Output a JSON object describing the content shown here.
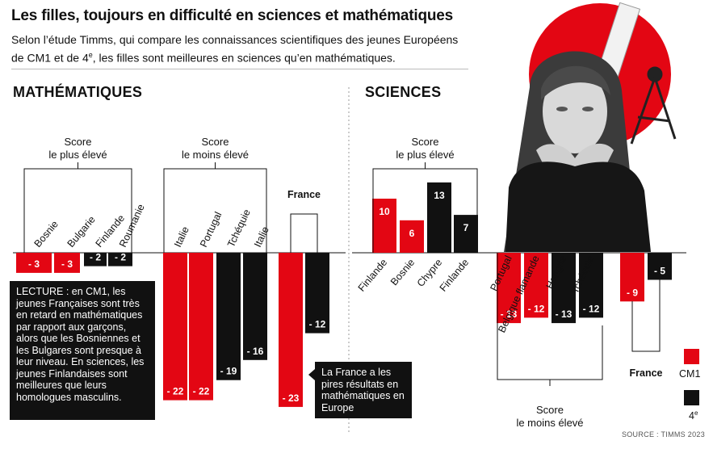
{
  "title": "Les filles, toujours en difficulté en sciences et mathématiques",
  "subtitle_part1": "Selon l’étude Timms, qui compare les connaissances scientifiques des jeunes Européens de CM1 et de 4",
  "subtitle_sup": "e",
  "subtitle_part2": ", les filles sont meilleures en sciences qu’en mathématiques.",
  "colors": {
    "cm1": "#e30613",
    "quatrieme": "#111111"
  },
  "legend": {
    "cm1_label": "CM1",
    "quatrieme_label": "4",
    "quatrieme_sup": "e"
  },
  "reading_note": "LECTURE : en CM1, les jeunes Françaises sont très en retard en mathématiques par rapport aux garçons, alors que les Bosniennes et les Bulgares sont presque à leur niveau. En sciences, les jeunes Finlandaises sont meilleures que leurs homologues masculins.",
  "france_note": "La France a les pires résultats en mathématiques en Europe",
  "source": "SOURCE : TIMMS 2023",
  "illustration": {
    "icons": [
      "girl-photo",
      "red-circle",
      "ruler",
      "compass"
    ]
  },
  "chart_data": [
    {
      "type": "bar",
      "title": "MATHÉMATIQUES",
      "categories": [
        "Bosnie",
        "Bulgarie",
        "Finlande",
        "Roumanie",
        "Italie",
        "Portugal",
        "Tchéquie",
        "Italie",
        "France",
        "France"
      ],
      "values": [
        -3,
        -3,
        -2,
        -2,
        -22,
        -22,
        -19,
        -16,
        -23,
        -12
      ],
      "labels": [
        "- 3",
        "- 3",
        "- 2",
        "- 2",
        "- 22",
        "- 22",
        "- 19",
        "- 16",
        "- 23",
        "- 12"
      ],
      "level": [
        "CM1",
        "CM1",
        "4e",
        "4e",
        "CM1",
        "CM1",
        "4e",
        "4e",
        "CM1",
        "4e"
      ],
      "groups": [
        {
          "label": "Score\nle plus élevé",
          "members": [
            0,
            1,
            2,
            3
          ]
        },
        {
          "label": "Score\nle moins élevé",
          "members": [
            4,
            5,
            6,
            7
          ]
        },
        {
          "label": "France",
          "members": [
            8,
            9
          ]
        }
      ]
    },
    {
      "type": "bar",
      "title": "SCIENCES",
      "categories": [
        "Finlande",
        "Bosnie",
        "Chypre",
        "Finlande",
        "Portugal",
        "Belgique flamande",
        "Hongrie",
        "Tchéquie",
        "France",
        "France"
      ],
      "values": [
        10,
        6,
        13,
        7,
        -13,
        -12,
        -13,
        -12,
        -9,
        -5
      ],
      "labels": [
        "10",
        "6",
        "13",
        "7",
        "- 13",
        "- 12",
        "- 13",
        "- 12",
        "- 9",
        "- 5"
      ],
      "level": [
        "CM1",
        "CM1",
        "4e",
        "4e",
        "CM1",
        "CM1",
        "4e",
        "4e",
        "CM1",
        "4e"
      ],
      "groups": [
        {
          "label": "Score\nle plus élevé",
          "members": [
            0,
            1,
            2,
            3
          ]
        },
        {
          "label": "Score\nle moins élevé",
          "members": [
            4,
            5,
            6,
            7
          ]
        },
        {
          "label": "France",
          "members": [
            8,
            9
          ]
        }
      ]
    }
  ]
}
